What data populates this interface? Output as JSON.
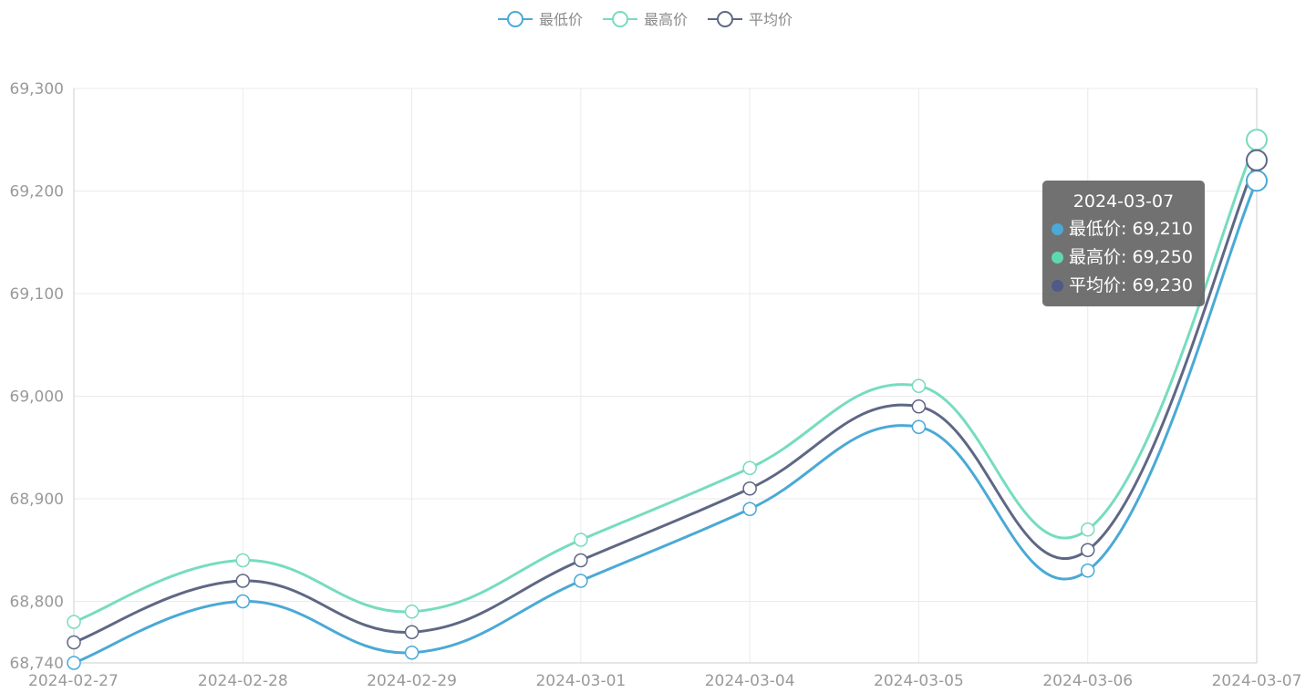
{
  "chart_data": {
    "type": "line",
    "smooth": true,
    "categories": [
      "2024-02-27",
      "2024-02-28",
      "2024-02-29",
      "2024-03-01",
      "2024-03-04",
      "2024-03-05",
      "2024-03-06",
      "2024-03-07"
    ],
    "series": [
      {
        "name": "最低价",
        "color": "#4aa9d6",
        "values": [
          68740,
          68800,
          68750,
          68820,
          68890,
          68970,
          68830,
          69210
        ]
      },
      {
        "name": "最高价",
        "color": "#76dcbf",
        "values": [
          68780,
          68840,
          68790,
          68860,
          68930,
          69010,
          68870,
          69250
        ]
      },
      {
        "name": "平均价",
        "color": "#5f6785",
        "values": [
          68760,
          68820,
          68770,
          68840,
          68910,
          68990,
          68850,
          69230
        ]
      }
    ],
    "yticks": [
      68740,
      68800,
      68900,
      69000,
      69100,
      69200,
      69300
    ],
    "ytick_labels": [
      "68,740",
      "68,800",
      "68,900",
      "69,000",
      "69,100",
      "69,200",
      "69,300"
    ],
    "ylim": [
      68740,
      69300
    ],
    "grid": true,
    "legend_position": "top-center",
    "highlighted_index": 7,
    "tooltip": {
      "title": "2024-03-07",
      "rows": [
        {
          "label": "最低价: 69,210",
          "color": "#4aa9d6"
        },
        {
          "label": "最高价: 69,250",
          "color": "#5ed8b0"
        },
        {
          "label": "平均价: 69,230",
          "color": "#4f5a88"
        }
      ]
    }
  }
}
